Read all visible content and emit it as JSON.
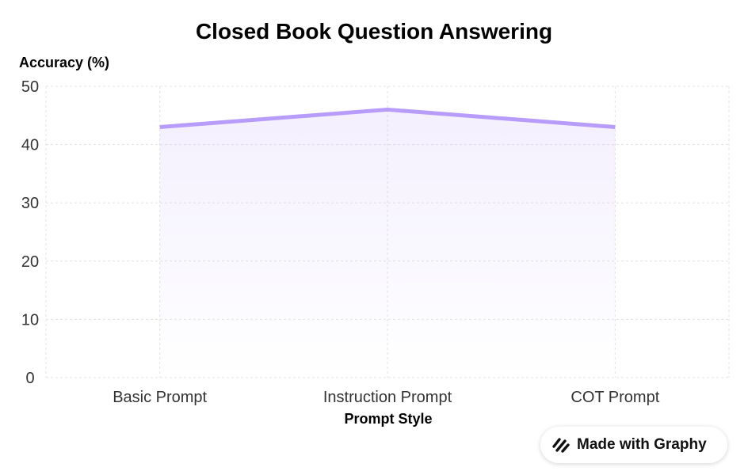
{
  "chart_data": {
    "type": "area",
    "title": "Closed Book Question Answering",
    "xlabel": "Prompt Style",
    "ylabel": "Accuracy (%)",
    "categories": [
      "Basic Prompt",
      "Instruction Prompt",
      "COT Prompt"
    ],
    "series": [
      {
        "values": [
          43,
          46,
          43
        ],
        "color": "#b79cfb"
      }
    ],
    "ylim": [
      0,
      50
    ],
    "yticks": [
      0,
      10,
      20,
      30,
      40,
      50
    ],
    "grid": true
  },
  "badge": {
    "text": "Made with Graphy",
    "icon": "graphy-logo-icon"
  }
}
